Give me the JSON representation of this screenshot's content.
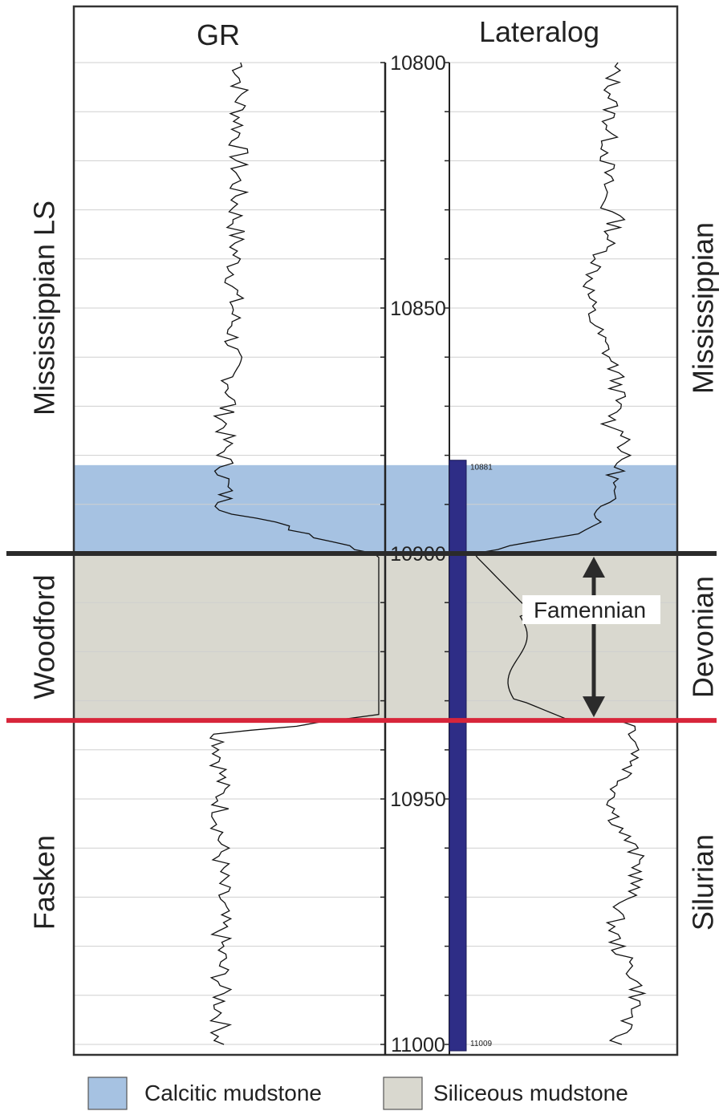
{
  "tracks": {
    "gr_title": "GR",
    "lateralog_title": "Lateralog"
  },
  "depth_axis": {
    "min": 10800,
    "max": 11000,
    "labels": [
      "10800",
      "10850",
      "10900",
      "10950",
      "11000"
    ],
    "minor_step": 10
  },
  "formations_left": [
    {
      "name": "Mississippian LS",
      "top": 10800,
      "base": 10900
    },
    {
      "name": "Woodford",
      "top": 10900,
      "base": 10934
    },
    {
      "name": "Fasken",
      "top": 10934,
      "base": 11000
    }
  ],
  "systems_right": [
    {
      "name": "Mississippian",
      "top": 10800,
      "base": 10900
    },
    {
      "name": "Devonian",
      "top": 10900,
      "base": 10934
    },
    {
      "name": "Silurian",
      "top": 10934,
      "base": 11000
    }
  ],
  "zones": [
    {
      "lithology": "Calcitic mudstone",
      "top": 10882,
      "base": 10900,
      "color": "#a6c2e2"
    },
    {
      "lithology": "Siliceous mudstone",
      "top": 10900,
      "base": 10934,
      "color": "#d9d8cf"
    }
  ],
  "boundaries": [
    {
      "depth": 10900,
      "color": "#2b2b2b"
    },
    {
      "depth": 10934,
      "color": "#d7253a"
    }
  ],
  "core": {
    "top": 10881,
    "base": 11009,
    "top_label": "10881",
    "base_label": "11009",
    "color": "#2e2d86"
  },
  "annotation": {
    "label": "Famennian",
    "top": 10900,
    "base": 10934
  },
  "legend": [
    {
      "label": "Calcitic mudstone",
      "color": "#a6c2e2"
    },
    {
      "label": "Siliceous mudstone",
      "color": "#d9d8cf"
    }
  ]
}
